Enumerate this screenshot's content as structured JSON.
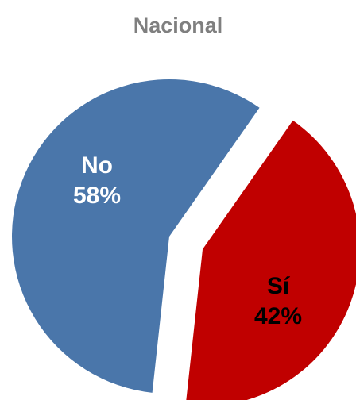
{
  "chart_data": {
    "type": "pie",
    "title": "Nacional",
    "categories": [
      "No",
      "Sí"
    ],
    "values": [
      58,
      42
    ],
    "value_labels": [
      "58%",
      "42%"
    ],
    "colors": [
      "#4a76aa",
      "#c00000"
    ]
  }
}
